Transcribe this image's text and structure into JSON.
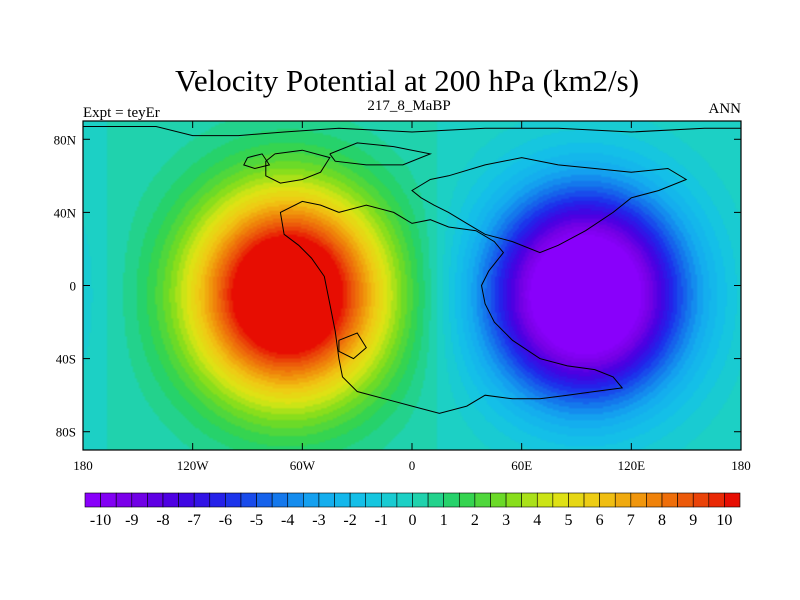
{
  "chart_data": {
    "type": "heatmap",
    "title": "Velocity Potential at 200 hPa (km2/s)",
    "left_label": "Expt = teyEr",
    "center_label": "217_8_MaBP",
    "right_label": "ANN",
    "x_range": [
      -180,
      180
    ],
    "y_range": [
      -90,
      90
    ],
    "x_ticks": [
      {
        "value": -180,
        "label": "180"
      },
      {
        "value": -120,
        "label": "120W"
      },
      {
        "value": -60,
        "label": "60W"
      },
      {
        "value": 0,
        "label": "0"
      },
      {
        "value": 60,
        "label": "60E"
      },
      {
        "value": 120,
        "label": "120E"
      },
      {
        "value": 180,
        "label": "180"
      }
    ],
    "y_ticks": [
      {
        "value": 80,
        "label": "80N"
      },
      {
        "value": 40,
        "label": "40N"
      },
      {
        "value": 0,
        "label": "0"
      },
      {
        "value": -40,
        "label": "40S"
      },
      {
        "value": -80,
        "label": "80S"
      }
    ],
    "centers": [
      {
        "name": "positive-max",
        "lon": -68,
        "lat": -5,
        "value": 10.5
      },
      {
        "name": "negative-min",
        "lon": 95,
        "lat": -5,
        "value": -10.5
      }
    ],
    "colorbar": {
      "min": -10.5,
      "max": 10.5,
      "step": 0.5,
      "labels": [
        "-10",
        "-9",
        "-8",
        "-7",
        "-6",
        "-5",
        "-4",
        "-3",
        "-2",
        "-1",
        "0",
        "1",
        "2",
        "3",
        "4",
        "5",
        "6",
        "7",
        "8",
        "9",
        "10"
      ]
    }
  },
  "colors": {
    "frame": "#000000",
    "coast": "#000000"
  }
}
